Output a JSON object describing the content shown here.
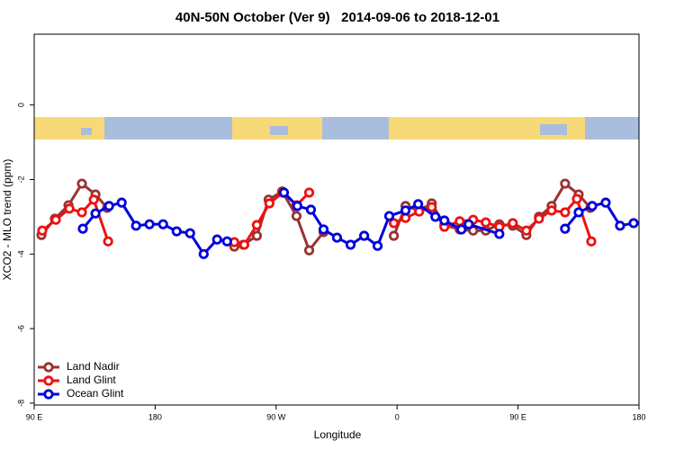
{
  "chart_data": {
    "type": "line",
    "title": "40N-50N October (Ver 9)   2014-09-06 to 2018-12-01",
    "xlabel": "Longitude",
    "ylabel": "XCO2 - MLO trend (ppm)",
    "xlim": [
      90,
      540
    ],
    "ylim": [
      -8.05,
      1.9
    ],
    "xticks": [
      {
        "value": 90,
        "label": "90 E"
      },
      {
        "value": 180,
        "label": "180"
      },
      {
        "value": 270,
        "label": "90 W"
      },
      {
        "value": 360,
        "label": "0"
      },
      {
        "value": 450,
        "label": "90 E"
      },
      {
        "value": 540,
        "label": "180"
      }
    ],
    "yticks": [
      0,
      -2,
      -4,
      -6,
      -8
    ],
    "legend": "bottom-left",
    "series": [
      {
        "name": "Land Nadir",
        "color": "#993333",
        "x": [
          95.4,
          105.4,
          115.5,
          125.5,
          135.6,
          144.3,
          null,
          238.9,
          245.6,
          255.7,
          264.4,
          274.5,
          285.2,
          294.6,
          305.3,
          null,
          357.6,
          366.3,
          376.4,
          385.8,
          395.2,
          406.6,
          416.6,
          426.0,
          436.1,
          446.1,
          456.2,
          465.6,
          475.0,
          485.0,
          495.1,
          503.8
        ],
        "values": [
          -3.49,
          -3.05,
          -2.69,
          -2.11,
          -2.4,
          -2.76,
          null,
          -3.8,
          -3.75,
          -3.51,
          -2.54,
          -2.32,
          -2.98,
          -3.9,
          -3.41,
          null,
          -3.51,
          -2.71,
          -2.83,
          -2.64,
          -3.22,
          -3.34,
          -3.37,
          -3.37,
          -3.2,
          -3.24,
          -3.49,
          -3.0,
          -2.71,
          -2.11,
          -2.4,
          -2.76
        ]
      },
      {
        "name": "Land Glint",
        "color": "#ee1111",
        "x": [
          96.0,
          106.1,
          116.2,
          125.5,
          134.3,
          145.0,
          null,
          238.9,
          246.3,
          255.7,
          265.0,
          275.1,
          285.2,
          294.6,
          null,
          357.6,
          366.3,
          376.4,
          385.8,
          395.2,
          406.6,
          416.6,
          426.0,
          436.1,
          446.1,
          456.2,
          465.6,
          475.0,
          485.0,
          493.8,
          504.5
        ],
        "values": [
          -3.37,
          -3.08,
          -2.78,
          -2.88,
          -2.54,
          -3.66,
          null,
          -3.68,
          -3.75,
          -3.22,
          -2.64,
          -2.35,
          -2.69,
          -2.35,
          null,
          -3.17,
          -3.03,
          -2.86,
          -2.74,
          -3.27,
          -3.12,
          -3.08,
          -3.15,
          -3.27,
          -3.17,
          -3.37,
          -3.05,
          -2.83,
          -2.88,
          -2.52,
          -3.66
        ]
      },
      {
        "name": "Ocean Glint",
        "color": "#0000dd",
        "x": [
          126.2,
          135.6,
          145.7,
          155.1,
          165.8,
          175.8,
          185.9,
          196.0,
          206.0,
          216.1,
          226.1,
          233.5,
          null,
          275.8,
          285.8,
          295.9,
          305.3,
          315.3,
          325.4,
          335.5,
          345.5,
          354.2,
          366.3,
          375.7,
          388.5,
          395.2,
          407.9,
          413.3,
          436.1,
          null,
          485.0,
          495.1,
          505.2,
          515.2,
          525.9,
          536.0
        ],
        "values": [
          -3.32,
          -2.91,
          -2.71,
          -2.62,
          -3.24,
          -3.2,
          -3.2,
          -3.39,
          -3.44,
          -4.0,
          -3.61,
          -3.66,
          null,
          -2.35,
          -2.71,
          -2.81,
          -3.34,
          -3.56,
          -3.75,
          -3.51,
          -3.78,
          -2.98,
          -2.83,
          -2.66,
          -3.0,
          -3.1,
          -3.34,
          -3.2,
          -3.46,
          null,
          -3.32,
          -2.88,
          -2.71,
          -2.62,
          -3.24,
          -3.17
        ]
      }
    ]
  }
}
